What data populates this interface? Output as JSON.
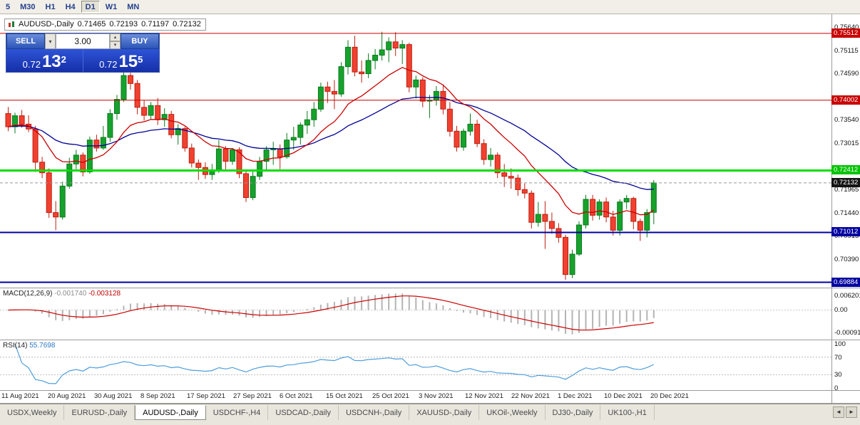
{
  "toolbar": {
    "periods": [
      {
        "label": "5",
        "active": false
      },
      {
        "label": "M30",
        "active": false
      },
      {
        "label": "H1",
        "active": false
      },
      {
        "label": "H4",
        "active": false
      },
      {
        "label": "D1",
        "active": true
      },
      {
        "label": "W1",
        "active": false
      },
      {
        "label": "MN",
        "active": false
      }
    ]
  },
  "window_title": {
    "symbol": "AUDUSD-,Daily",
    "open": "0.71465",
    "high": "0.72193",
    "low": "0.71197",
    "close": "0.72132"
  },
  "trade_panel": {
    "sell_label": "SELL",
    "buy_label": "BUY",
    "volume": "3.00",
    "bid": {
      "big": "0.72",
      "pips": "13",
      "pipette": "2"
    },
    "ask": {
      "big": "0.72",
      "pips": "15",
      "pipette": "5"
    }
  },
  "price_axis": {
    "ticks": [
      {
        "price": 0.7564,
        "label": "0.75640"
      },
      {
        "price": 0.75115,
        "label": "0.75115"
      },
      {
        "price": 0.7459,
        "label": "0.74590"
      },
      {
        "price": 0.7354,
        "label": "0.73540"
      },
      {
        "price": 0.73015,
        "label": "0.73015"
      },
      {
        "price": 0.71965,
        "label": "0.71965"
      },
      {
        "price": 0.7144,
        "label": "0.71440"
      },
      {
        "price": 0.70915,
        "label": "0.70915"
      },
      {
        "price": 0.7039,
        "label": "0.70390"
      }
    ],
    "badges": [
      {
        "price": 0.75512,
        "label": "0.75512",
        "color": "#c80000"
      },
      {
        "price": 0.74002,
        "label": "0.74002",
        "color": "#c80000"
      },
      {
        "price": 0.72412,
        "label": "0.72412",
        "color": "#00c400"
      },
      {
        "price": 0.71012,
        "label": "0.71012",
        "color": "#0000a0"
      },
      {
        "price": 0.69884,
        "label": "0.69884",
        "color": "#0000a0"
      }
    ]
  },
  "hlines": [
    {
      "price": 0.75512,
      "color": "#c80000",
      "width": 1
    },
    {
      "price": 0.74002,
      "color": "#c80000",
      "width": 1
    },
    {
      "price": 0.72412,
      "color": "#00dd00",
      "width": 3
    },
    {
      "price": 0.71012,
      "color": "#0000a0",
      "width": 2
    },
    {
      "price": 0.69884,
      "color": "#0000a0",
      "width": 2
    }
  ],
  "current_price": {
    "value": 0.72132,
    "label": "0.72132"
  },
  "macd": {
    "name": "MACD(12,26,9)",
    "main_value": "-0.001740",
    "signal_value": "-0.003128",
    "axis_labels": [
      "0.006201",
      "0.00",
      "-0.000919"
    ]
  },
  "rsi": {
    "name": "RSI(14)",
    "value": "55.7698",
    "axis_labels": [
      "100",
      "70",
      "30",
      "0"
    ],
    "levels": [
      70,
      30
    ]
  },
  "dates": [
    "11 Aug 2021",
    "20 Aug 2021",
    "30 Aug 2021",
    "8 Sep 2021",
    "17 Sep 2021",
    "27 Sep 2021",
    "6 Oct 2021",
    "15 Oct 2021",
    "25 Oct 2021",
    "3 Nov 2021",
    "12 Nov 2021",
    "22 Nov 2021",
    "1 Dec 2021",
    "10 Dec 2021",
    "20 Dec 2021"
  ],
  "tabs": {
    "items": [
      "USDX,Weekly",
      "EURUSD-,Daily",
      "AUDUSD-,Daily",
      "USDCHF-,H4",
      "USDCAD-,Daily",
      "USDCNH-,Daily",
      "XAUUSD-,Daily",
      "UKOil-,Weekly",
      "DJ30-,Daily",
      "UK100-,H1"
    ],
    "active_index": 2
  },
  "chart_data": {
    "type": "candlestick",
    "symbol": "AUDUSD",
    "timeframe": "Daily",
    "y_range": [
      0.69828,
      0.7572
    ],
    "up_color": "#16a22c",
    "down_color": "#f2402f",
    "up_border": "#0a7a1c",
    "down_border": "#bb2011",
    "ma_fast": {
      "period": 13,
      "color": "#cc0000"
    },
    "ma_slow": {
      "period": 34,
      "color": "#000096"
    },
    "macd_params": [
      12,
      26,
      9
    ],
    "rsi_period": 14,
    "ohlc": [
      [
        0.737,
        0.7385,
        0.733,
        0.734
      ],
      [
        0.734,
        0.7372,
        0.7325,
        0.7365
      ],
      [
        0.7365,
        0.7378,
        0.7338,
        0.7346
      ],
      [
        0.7346,
        0.7366,
        0.7328,
        0.7335
      ],
      [
        0.7335,
        0.7342,
        0.7238,
        0.726
      ],
      [
        0.726,
        0.7272,
        0.7224,
        0.7236
      ],
      [
        0.7236,
        0.7246,
        0.7134,
        0.7146
      ],
      [
        0.7146,
        0.7172,
        0.7106,
        0.7136
      ],
      [
        0.7136,
        0.7216,
        0.713,
        0.7206
      ],
      [
        0.7206,
        0.727,
        0.72,
        0.7256
      ],
      [
        0.7256,
        0.7288,
        0.7244,
        0.7276
      ],
      [
        0.7276,
        0.7282,
        0.7228,
        0.7238
      ],
      [
        0.7238,
        0.7318,
        0.7234,
        0.731
      ],
      [
        0.731,
        0.7322,
        0.7284,
        0.7292
      ],
      [
        0.7292,
        0.7342,
        0.7288,
        0.7316
      ],
      [
        0.7316,
        0.738,
        0.7306,
        0.737
      ],
      [
        0.737,
        0.7412,
        0.7356,
        0.7402
      ],
      [
        0.7402,
        0.747,
        0.7396,
        0.7456
      ],
      [
        0.7456,
        0.7462,
        0.7424,
        0.7438
      ],
      [
        0.7438,
        0.7446,
        0.7368,
        0.7384
      ],
      [
        0.7384,
        0.74,
        0.7354,
        0.7366
      ],
      [
        0.7366,
        0.7396,
        0.7356,
        0.7388
      ],
      [
        0.7388,
        0.7405,
        0.7344,
        0.7356
      ],
      [
        0.7356,
        0.7382,
        0.734,
        0.7368
      ],
      [
        0.7368,
        0.7376,
        0.7314,
        0.7322
      ],
      [
        0.7322,
        0.7346,
        0.73,
        0.7336
      ],
      [
        0.7336,
        0.734,
        0.7284,
        0.7292
      ],
      [
        0.7292,
        0.7302,
        0.7248,
        0.7258
      ],
      [
        0.7258,
        0.7266,
        0.722,
        0.7248
      ],
      [
        0.7248,
        0.726,
        0.7222,
        0.7232
      ],
      [
        0.7232,
        0.7256,
        0.722,
        0.7242
      ],
      [
        0.7242,
        0.731,
        0.7236,
        0.729
      ],
      [
        0.729,
        0.7296,
        0.7244,
        0.7262
      ],
      [
        0.7262,
        0.7292,
        0.7254,
        0.7288
      ],
      [
        0.7288,
        0.7294,
        0.7224,
        0.7234
      ],
      [
        0.7234,
        0.724,
        0.717,
        0.718
      ],
      [
        0.718,
        0.724,
        0.7174,
        0.7228
      ],
      [
        0.7228,
        0.7272,
        0.722,
        0.7262
      ],
      [
        0.7262,
        0.7296,
        0.724,
        0.7288
      ],
      [
        0.7288,
        0.7306,
        0.7254,
        0.729
      ],
      [
        0.729,
        0.73,
        0.7244,
        0.7272
      ],
      [
        0.7272,
        0.7326,
        0.7268,
        0.731
      ],
      [
        0.731,
        0.734,
        0.7288,
        0.7316
      ],
      [
        0.7316,
        0.735,
        0.73,
        0.7344
      ],
      [
        0.7344,
        0.7376,
        0.7324,
        0.7356
      ],
      [
        0.7356,
        0.7396,
        0.734,
        0.738
      ],
      [
        0.738,
        0.744,
        0.7374,
        0.743
      ],
      [
        0.743,
        0.7442,
        0.7394,
        0.742
      ],
      [
        0.742,
        0.7446,
        0.738,
        0.7414
      ],
      [
        0.7414,
        0.7486,
        0.7408,
        0.7476
      ],
      [
        0.7476,
        0.7536,
        0.7458,
        0.752
      ],
      [
        0.752,
        0.7546,
        0.7454,
        0.7464
      ],
      [
        0.7464,
        0.749,
        0.744,
        0.746
      ],
      [
        0.746,
        0.7506,
        0.745,
        0.749
      ],
      [
        0.749,
        0.7516,
        0.747,
        0.7502
      ],
      [
        0.7502,
        0.7555,
        0.749,
        0.7514
      ],
      [
        0.7514,
        0.7542,
        0.7486,
        0.7532
      ],
      [
        0.7532,
        0.7554,
        0.75,
        0.7518
      ],
      [
        0.7518,
        0.7536,
        0.7482,
        0.7526
      ],
      [
        0.7526,
        0.753,
        0.7418,
        0.743
      ],
      [
        0.743,
        0.7456,
        0.7404,
        0.7446
      ],
      [
        0.7446,
        0.7452,
        0.7384,
        0.7398
      ],
      [
        0.7398,
        0.7412,
        0.736,
        0.74
      ],
      [
        0.74,
        0.7432,
        0.7388,
        0.742
      ],
      [
        0.742,
        0.7436,
        0.7368,
        0.738
      ],
      [
        0.738,
        0.7396,
        0.7318,
        0.733
      ],
      [
        0.733,
        0.7342,
        0.7284,
        0.7294
      ],
      [
        0.7294,
        0.7336,
        0.7286,
        0.733
      ],
      [
        0.733,
        0.737,
        0.732,
        0.7346
      ],
      [
        0.7346,
        0.7356,
        0.7294,
        0.7302
      ],
      [
        0.7302,
        0.7312,
        0.7254,
        0.7266
      ],
      [
        0.7266,
        0.7292,
        0.725,
        0.7276
      ],
      [
        0.7276,
        0.7282,
        0.7224,
        0.7236
      ],
      [
        0.7236,
        0.7256,
        0.7204,
        0.7228
      ],
      [
        0.7228,
        0.7246,
        0.72,
        0.7224
      ],
      [
        0.7224,
        0.7232,
        0.7184,
        0.7198
      ],
      [
        0.7198,
        0.7212,
        0.7178,
        0.719
      ],
      [
        0.719,
        0.7196,
        0.711,
        0.7124
      ],
      [
        0.7124,
        0.717,
        0.7114,
        0.7142
      ],
      [
        0.7142,
        0.7172,
        0.7064,
        0.7126
      ],
      [
        0.7126,
        0.7146,
        0.7098,
        0.711
      ],
      [
        0.711,
        0.7122,
        0.7078,
        0.709
      ],
      [
        0.709,
        0.7096,
        0.6994,
        0.7006
      ],
      [
        0.7006,
        0.7062,
        0.6998,
        0.7052
      ],
      [
        0.7052,
        0.7126,
        0.7048,
        0.7118
      ],
      [
        0.7118,
        0.7186,
        0.711,
        0.7176
      ],
      [
        0.7176,
        0.7186,
        0.7128,
        0.714
      ],
      [
        0.714,
        0.7176,
        0.713,
        0.717
      ],
      [
        0.717,
        0.718,
        0.7124,
        0.7136
      ],
      [
        0.7136,
        0.715,
        0.7094,
        0.7106
      ],
      [
        0.7106,
        0.7176,
        0.7094,
        0.717
      ],
      [
        0.717,
        0.7186,
        0.7154,
        0.7178
      ],
      [
        0.7178,
        0.7182,
        0.7108,
        0.7126
      ],
      [
        0.7126,
        0.7132,
        0.7082,
        0.7106
      ],
      [
        0.7106,
        0.7154,
        0.709,
        0.7146
      ],
      [
        0.71465,
        0.72193,
        0.71197,
        0.72132
      ]
    ]
  }
}
